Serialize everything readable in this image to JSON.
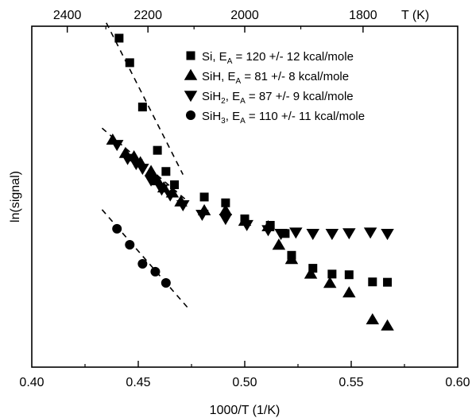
{
  "chart_data": {
    "type": "scatter",
    "xlabel": "1000/T (1/K)",
    "ylabel": "ln(signal)",
    "x2label": "T (K)",
    "xlim": [
      0.4,
      0.6
    ],
    "ylim": [
      0,
      1
    ],
    "x_ticks": [
      "0.40",
      "0.45",
      "0.50",
      "0.55",
      "0.60"
    ],
    "x2_ticks": [
      "2400",
      "2200",
      "2000",
      "1800"
    ],
    "grid": false,
    "legend_position": "top-right",
    "series": [
      {
        "name": "Si",
        "label_sub": "A",
        "label_rest": " = 120 +/- 12 kcal/mole",
        "marker": "square",
        "points": [
          [
            0.441,
            0.965
          ],
          [
            0.446,
            0.893
          ],
          [
            0.452,
            0.763
          ],
          [
            0.459,
            0.636
          ],
          [
            0.463,
            0.574
          ],
          [
            0.467,
            0.535
          ],
          [
            0.481,
            0.499
          ],
          [
            0.491,
            0.482
          ],
          [
            0.5,
            0.435
          ],
          [
            0.512,
            0.416
          ],
          [
            0.519,
            0.392
          ],
          [
            0.522,
            0.328
          ],
          [
            0.532,
            0.29
          ],
          [
            0.541,
            0.273
          ],
          [
            0.549,
            0.271
          ],
          [
            0.56,
            0.25
          ],
          [
            0.567,
            0.249
          ]
        ],
        "fit": [
          [
            0.435,
            1.01
          ],
          [
            0.471,
            0.565
          ]
        ]
      },
      {
        "name": "SiH",
        "label_sub": "A",
        "label_rest": " = 81 +/- 8 kcal/mole",
        "marker": "triangle-up",
        "points": [
          [
            0.438,
            0.666
          ],
          [
            0.444,
            0.627
          ],
          [
            0.448,
            0.617
          ],
          [
            0.451,
            0.6
          ],
          [
            0.456,
            0.574
          ],
          [
            0.459,
            0.547
          ],
          [
            0.462,
            0.526
          ],
          [
            0.466,
            0.511
          ],
          [
            0.47,
            0.485
          ],
          [
            0.481,
            0.459
          ],
          [
            0.491,
            0.459
          ],
          [
            0.5,
            0.428
          ],
          [
            0.511,
            0.412
          ],
          [
            0.516,
            0.358
          ],
          [
            0.522,
            0.316
          ],
          [
            0.531,
            0.273
          ],
          [
            0.54,
            0.246
          ],
          [
            0.549,
            0.218
          ],
          [
            0.56,
            0.139
          ],
          [
            0.567,
            0.121
          ]
        ]
      },
      {
        "name": "SiH",
        "label_sub2": "2",
        "label_sub": "A",
        "label_rest": " = 87 +/- 9 kcal/mole",
        "marker": "triangle-down",
        "points": [
          [
            0.44,
            0.653
          ],
          [
            0.445,
            0.612
          ],
          [
            0.449,
            0.597
          ],
          [
            0.452,
            0.583
          ],
          [
            0.456,
            0.549
          ],
          [
            0.461,
            0.522
          ],
          [
            0.465,
            0.505
          ],
          [
            0.471,
            0.476
          ],
          [
            0.48,
            0.448
          ],
          [
            0.491,
            0.436
          ],
          [
            0.501,
            0.418
          ],
          [
            0.511,
            0.403
          ],
          [
            0.517,
            0.392
          ],
          [
            0.524,
            0.396
          ],
          [
            0.532,
            0.392
          ],
          [
            0.541,
            0.392
          ],
          [
            0.549,
            0.394
          ],
          [
            0.559,
            0.396
          ],
          [
            0.567,
            0.392
          ]
        ],
        "fit": [
          [
            0.433,
            0.701
          ],
          [
            0.472,
            0.493
          ]
        ]
      },
      {
        "name": "SiH",
        "label_sub2": "3",
        "label_sub": "A",
        "label_rest": " = 110 +/- 11 kcal/mole",
        "marker": "circle",
        "points": [
          [
            0.44,
            0.406
          ],
          [
            0.446,
            0.359
          ],
          [
            0.452,
            0.303
          ],
          [
            0.458,
            0.28
          ],
          [
            0.463,
            0.247
          ]
        ],
        "fit": [
          [
            0.433,
            0.462
          ],
          [
            0.473,
            0.176
          ]
        ]
      }
    ]
  }
}
